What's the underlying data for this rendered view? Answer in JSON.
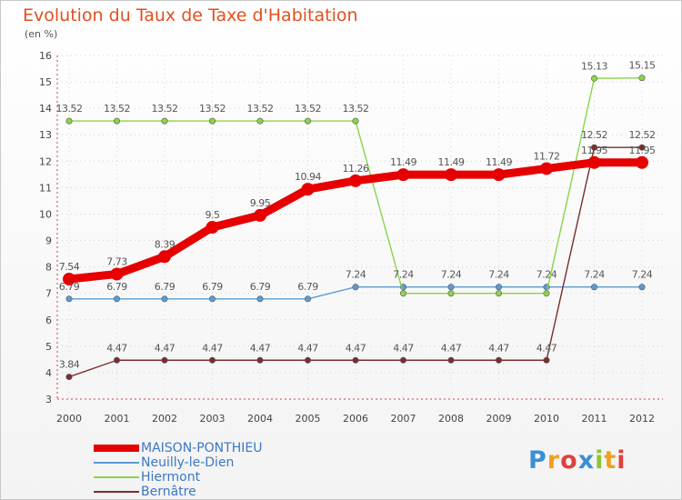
{
  "chart_data": {
    "type": "line",
    "title": "Evolution du Taux de Taxe d'Habitation",
    "unit_label": "(en %)",
    "xlabel": "",
    "ylabel": "",
    "ylim": [
      3,
      16
    ],
    "y_ticks": [
      "3",
      "4",
      "5",
      "6",
      "7",
      "8",
      "9",
      "10",
      "11",
      "12",
      "13",
      "14",
      "15",
      "16"
    ],
    "categories": [
      "2000",
      "2001",
      "2002",
      "2003",
      "2004",
      "2005",
      "2006",
      "2007",
      "2008",
      "2009",
      "2010",
      "2011",
      "2012"
    ],
    "series": [
      {
        "name": "MAISON-PONTHIEU",
        "color": "#e60000",
        "values": [
          7.54,
          7.73,
          8.39,
          9.5,
          9.95,
          10.94,
          11.26,
          11.49,
          11.49,
          11.49,
          11.72,
          11.95,
          11.95
        ],
        "labels": [
          "7.54",
          "7.73",
          "8.39",
          "9.5",
          "9.95",
          "10.94",
          "11.26",
          "11.49",
          "11.49",
          "11.49",
          "11.72",
          "11.95",
          "11.95"
        ]
      },
      {
        "name": "Neuilly-le-Dien",
        "color": "#5b9bd5",
        "values": [
          6.79,
          6.79,
          6.79,
          6.79,
          6.79,
          6.79,
          7.24,
          7.24,
          7.24,
          7.24,
          7.24,
          7.24,
          7.24
        ],
        "labels": [
          "6.79",
          "6.79",
          "6.79",
          "6.79",
          "6.79",
          "6.79",
          "7.24",
          "7.24",
          "7.24",
          "7.24",
          "7.24",
          "7.24",
          "7.24"
        ]
      },
      {
        "name": "Hiermont",
        "color": "#8ad44a",
        "values": [
          13.52,
          13.52,
          13.52,
          13.52,
          13.52,
          13.52,
          13.52,
          7.0,
          7.0,
          7.0,
          7.0,
          15.13,
          15.15
        ],
        "labels": [
          "13.52",
          "13.52",
          "13.52",
          "13.52",
          "13.52",
          "13.52",
          "13.52",
          "",
          "",
          "",
          "",
          "15.13",
          "15.15"
        ]
      },
      {
        "name": "Bernâtre",
        "color": "#7b2d2d",
        "values": [
          3.84,
          4.47,
          4.47,
          4.47,
          4.47,
          4.47,
          4.47,
          4.47,
          4.47,
          4.47,
          4.47,
          12.52,
          12.52
        ],
        "labels": [
          "3.84",
          "4.47",
          "4.47",
          "4.47",
          "4.47",
          "4.47",
          "4.47",
          "4.47",
          "4.47",
          "4.47",
          "4.47",
          "12.52",
          "12.52"
        ]
      }
    ],
    "legend_position": "bottom-left"
  },
  "logo": {
    "letters": [
      "P",
      "r",
      "o",
      "x",
      "i",
      "t",
      "i"
    ],
    "colors": [
      "#3a8fd6",
      "#f0a020",
      "#e04040",
      "#3a8fd6",
      "#8ac43a",
      "#f0a020",
      "#e04040"
    ]
  }
}
